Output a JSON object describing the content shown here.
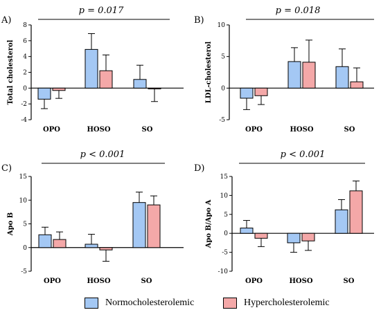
{
  "colors": {
    "normo": "#a4c8f4",
    "hyper": "#f4a8a8",
    "axis": "#000000"
  },
  "legend": {
    "items": [
      {
        "name": "Normocholesterolemic",
        "color": "#a4c8f4"
      },
      {
        "name": "Hypercholesterolemic",
        "color": "#f4a8a8"
      }
    ]
  },
  "chart_data": [
    {
      "panel": "A)",
      "type": "bar",
      "pvalue": "p = 0.017",
      "ylabel": "Total cholesterol",
      "ylim": [
        -4,
        8
      ],
      "yticks": [
        -4,
        -2,
        0,
        2,
        4,
        6,
        8
      ],
      "categories": [
        "OPO",
        "HOSO",
        "SO"
      ],
      "series": [
        {
          "name": "Normocholesterolemic",
          "values": [
            -1.4,
            4.9,
            1.1
          ],
          "errors": [
            1.2,
            2.0,
            1.8
          ]
        },
        {
          "name": "Hypercholesterolemic",
          "values": [
            -0.3,
            2.2,
            -0.1
          ],
          "errors": [
            1.0,
            2.0,
            1.6
          ]
        }
      ]
    },
    {
      "panel": "B)",
      "type": "bar",
      "pvalue": "p = 0.018",
      "ylabel": "LDL-cholesterol",
      "ylim": [
        -5,
        10
      ],
      "yticks": [
        -5,
        0,
        5,
        10
      ],
      "categories": [
        "OPO",
        "HOSO",
        "SO"
      ],
      "series": [
        {
          "name": "Normocholesterolemic",
          "values": [
            -1.6,
            4.2,
            3.4
          ],
          "errors": [
            1.8,
            2.2,
            2.8
          ]
        },
        {
          "name": "Hypercholesterolemic",
          "values": [
            -1.2,
            4.1,
            1.0
          ],
          "errors": [
            1.4,
            3.5,
            2.2
          ]
        }
      ]
    },
    {
      "panel": "C)",
      "type": "bar",
      "pvalue": "p < 0.001",
      "ylabel": "Apo B",
      "ylim": [
        -5,
        15
      ],
      "yticks": [
        -5,
        0,
        5,
        10,
        15
      ],
      "categories": [
        "OPO",
        "HOSO",
        "SO"
      ],
      "series": [
        {
          "name": "Normocholesterolemic",
          "values": [
            2.7,
            0.7,
            9.5
          ],
          "errors": [
            1.6,
            2.1,
            2.2
          ]
        },
        {
          "name": "Hypercholesterolemic",
          "values": [
            1.7,
            -0.5,
            9.0
          ],
          "errors": [
            1.6,
            2.4,
            1.9
          ]
        }
      ]
    },
    {
      "panel": "D)",
      "type": "bar",
      "pvalue": "p < 0.001",
      "ylabel": "Apo B/Apo A",
      "ylim": [
        -10,
        15
      ],
      "yticks": [
        -10,
        -5,
        0,
        5,
        10,
        15
      ],
      "categories": [
        "OPO",
        "HOSO",
        "SO"
      ],
      "series": [
        {
          "name": "Normocholesterolemic",
          "values": [
            1.4,
            -2.5,
            6.2
          ],
          "errors": [
            2.0,
            2.5,
            2.7
          ]
        },
        {
          "name": "Hypercholesterolemic",
          "values": [
            -1.3,
            -2.0,
            11.2
          ],
          "errors": [
            2.2,
            2.5,
            2.6
          ]
        }
      ]
    }
  ]
}
